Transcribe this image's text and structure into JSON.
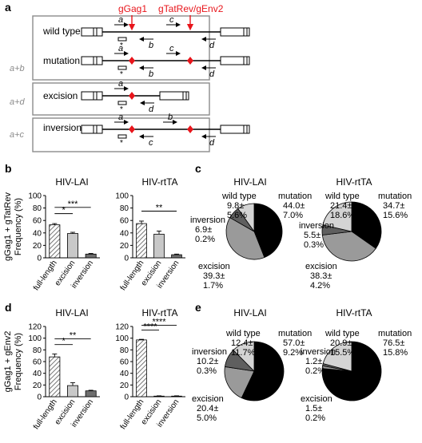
{
  "panel_letters": {
    "a": "a",
    "b": "b",
    "c": "c",
    "d": "d",
    "e": "e"
  },
  "panel_a": {
    "guide_top": "gGag1",
    "guide_top2": "gTatRev/gEnv2",
    "side_labels": {
      "ab": "a+b",
      "ad": "a+d",
      "ac": "a+c"
    },
    "rows": {
      "wild_type": "wild type",
      "mutation": "mutation",
      "excision": "excision",
      "inversion": "inversion"
    },
    "primers": {
      "a": "a",
      "b": "b",
      "c": "c",
      "d": "d"
    },
    "asterisk": "*",
    "colors": {
      "guide": "#e8151b",
      "line": "#000000",
      "box": "#8c8c8c"
    }
  },
  "chart_data": [
    {
      "id": "b-lai",
      "type": "bar",
      "title": "HIV-LAI",
      "ylabel": "gGag1 + gTatRev\nFrequency (%)",
      "categories": [
        "full-length",
        "excision",
        "inversion"
      ],
      "values": [
        53,
        39,
        6
      ],
      "errors": [
        2,
        2,
        1
      ],
      "ylim": [
        0,
        100
      ],
      "yticks": [
        "0",
        "20",
        "40",
        "60",
        "80",
        "100"
      ],
      "significance": [
        {
          "from": 0,
          "to": 1,
          "label": "*"
        },
        {
          "from": 0,
          "to": 2,
          "label": "***"
        }
      ]
    },
    {
      "id": "b-rtta",
      "type": "bar",
      "title": "HIV-rtTA",
      "categories": [
        "full-length",
        "excision",
        "inversion"
      ],
      "values": [
        55,
        38,
        5
      ],
      "errors": [
        4,
        5,
        1
      ],
      "ylim": [
        0,
        100
      ],
      "yticks": [
        "0",
        "20",
        "40",
        "60",
        "80",
        "100"
      ],
      "significance": [
        {
          "from": 0,
          "to": 2,
          "label": "**"
        }
      ]
    },
    {
      "id": "d-lai",
      "type": "bar",
      "title": "HIV-LAI",
      "ylabel": "gGag1 + gEnv2\nFrequency (%)",
      "categories": [
        "full-length",
        "excision",
        "inversion"
      ],
      "values": [
        68,
        19,
        10
      ],
      "errors": [
        5,
        5,
        1
      ],
      "ylim": [
        0,
        120
      ],
      "yticks": [
        "0",
        "20",
        "40",
        "60",
        "80",
        "100",
        "120"
      ],
      "significance": [
        {
          "from": 0,
          "to": 1,
          "label": "*"
        },
        {
          "from": 0,
          "to": 2,
          "label": "**"
        }
      ]
    },
    {
      "id": "d-rtta",
      "type": "bar",
      "title": "HIV-rtTA",
      "categories": [
        "full-length",
        "excision",
        "inversion"
      ],
      "values": [
        97,
        1,
        1
      ],
      "errors": [
        1,
        0.5,
        0.5
      ],
      "ylim": [
        0,
        120
      ],
      "yticks": [
        "0",
        "20",
        "40",
        "60",
        "80",
        "100",
        "120"
      ],
      "significance": [
        {
          "from": 0,
          "to": 1,
          "label": "****"
        },
        {
          "from": 0,
          "to": 2,
          "label": "****"
        }
      ]
    },
    {
      "id": "c-lai",
      "type": "pie",
      "title": "HIV-LAI",
      "slices": [
        {
          "label": "mutation",
          "value": 44.0,
          "value_text": "44.0±",
          "sd_text": "7.0%",
          "color": "#000000"
        },
        {
          "label": "excision",
          "value": 39.3,
          "value_text": "39.3±",
          "sd_text": "1.7%",
          "color": "#9a9a9a"
        },
        {
          "label": "inversion",
          "value": 6.9,
          "value_text": "6.9±",
          "sd_text": "0.2%",
          "color": "#5f5f5f"
        },
        {
          "label": "wild type",
          "value": 9.8,
          "value_text": "9.8±",
          "sd_text": "5.6%",
          "color": "#d4d4d4"
        }
      ]
    },
    {
      "id": "c-rtta",
      "type": "pie",
      "title": "HIV-rtTA",
      "slices": [
        {
          "label": "mutation",
          "value": 34.7,
          "value_text": "34.7±",
          "sd_text": "15.6%",
          "color": "#000000"
        },
        {
          "label": "excision",
          "value": 38.3,
          "value_text": "38.3±",
          "sd_text": "4.2%",
          "color": "#9a9a9a"
        },
        {
          "label": "inversion",
          "value": 5.5,
          "value_text": "5.5±",
          "sd_text": "0.3%",
          "color": "#5f5f5f"
        },
        {
          "label": "wild type",
          "value": 21.4,
          "value_text": "21.4±",
          "sd_text": "18.6%",
          "color": "#d4d4d4"
        }
      ]
    },
    {
      "id": "e-lai",
      "type": "pie",
      "title": "HIV-LAI",
      "slices": [
        {
          "label": "mutation",
          "value": 57.0,
          "value_text": "57.0±",
          "sd_text": "9.2%",
          "color": "#000000"
        },
        {
          "label": "excision",
          "value": 20.4,
          "value_text": "20.4±",
          "sd_text": "5.0%",
          "color": "#9a9a9a"
        },
        {
          "label": "inversion",
          "value": 10.2,
          "value_text": "10.2±",
          "sd_text": "0.3%",
          "color": "#5f5f5f"
        },
        {
          "label": "wild type",
          "value": 12.4,
          "value_text": "12.4±",
          "sd_text": "11.7%",
          "color": "#d4d4d4"
        }
      ]
    },
    {
      "id": "e-rtta",
      "type": "pie",
      "title": "HIV-rtTA",
      "slices": [
        {
          "label": "mutation",
          "value": 76.5,
          "value_text": "76.5±",
          "sd_text": "15.8%",
          "color": "#000000"
        },
        {
          "label": "excision",
          "value": 1.5,
          "value_text": "1.5±",
          "sd_text": "0.2%",
          "color": "#9a9a9a"
        },
        {
          "label": "inversion",
          "value": 1.2,
          "value_text": "1.2±",
          "sd_text": "0.2%",
          "color": "#5f5f5f"
        },
        {
          "label": "wild type",
          "value": 20.9,
          "value_text": "20.9±",
          "sd_text": "15.5%",
          "color": "#d4d4d4"
        }
      ]
    }
  ]
}
